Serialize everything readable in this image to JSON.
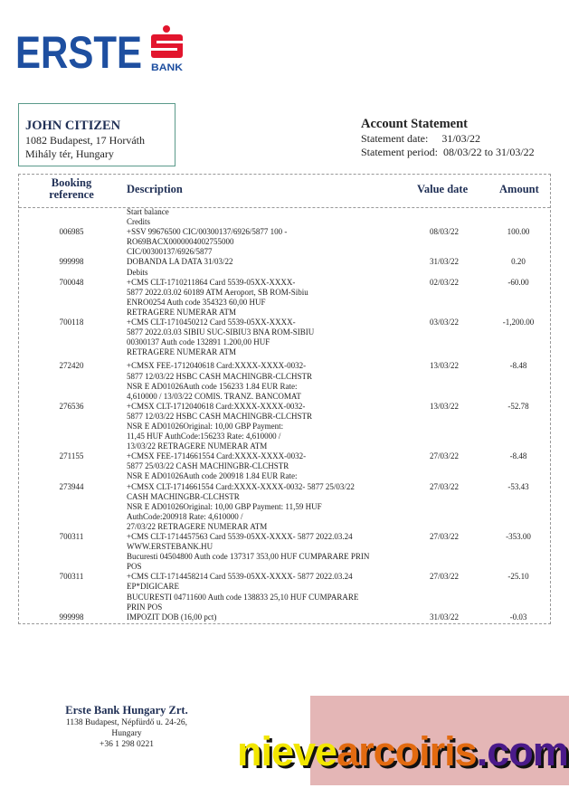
{
  "logo": {
    "word": "ERSTE",
    "sub": "BANK",
    "brand_blue": "#1e4fa0",
    "brand_red": "#e2152d"
  },
  "customer": {
    "name": "JOHN CITIZEN",
    "address_lines": [
      "1082 Budapest, 17 Horváth",
      "Mihály tér, Hungary"
    ]
  },
  "statement": {
    "title": "Account Statement",
    "date_label": "Statement date:",
    "date_value": "31/03/22",
    "period_label": "Statement period:",
    "period_value": "08/03/22 to 31/03/22"
  },
  "table": {
    "headers": {
      "ref_line1": "Booking",
      "ref_line2": "reference",
      "description": "Description",
      "value_date": "Value date",
      "amount": "Amount"
    },
    "lines": [
      {
        "desc": "Start balance"
      },
      {
        "desc": "Credits"
      },
      {
        "ref": "006985",
        "desc": "+SSV 99676500 CIC/00300137/6926/5877 100 -",
        "date": "08/03/22",
        "amount": "100.00"
      },
      {
        "desc": "RO69BACX0000004002755000"
      },
      {
        "desc": "CIC/00300137/6926/5877"
      },
      {
        "ref": "999998",
        "desc": "DOBANDA LA DATA 31/03/22",
        "date": "31/03/22",
        "amount": "0.20"
      },
      {
        "desc": "Debits"
      },
      {
        "ref": "700048",
        "desc": "+CMS CLT-1710211864 Card 5539-05XX-XXXX-",
        "date": "02/03/22",
        "amount": "-60.00"
      },
      {
        "desc": "5877 2022.03.02 60189 ATM Aeroport, SB ROM-Sibiu"
      },
      {
        "desc": "ENRO0254   Auth code 354323           60,00 HUF"
      },
      {
        "desc": "RETRAGERE NUMERAR ATM"
      },
      {
        "ref": "700118",
        "desc": "+CMS CLT-1710450212 Card 5539-05XX-XXXX-",
        "date": "03/03/22",
        "amount": "-1,200.00"
      },
      {
        "desc": "5877 2022.03.03 SIBIU SUC-SIBIU3 BNA ROM-SIBIU"
      },
      {
        "desc": "00300137              Auth code 132891   1.200,00 HUF"
      },
      {
        "desc": "RETRAGERE NUMERAR ATM"
      },
      {
        "gap": true,
        "ref": "272420",
        "desc": "+CMSX FEE-1712040618 Card:XXXX-XXXX-0032-",
        "date": "13/03/22",
        "amount": "-8.48"
      },
      {
        "desc": "5877 12/03/22 HSBC CASH MACHINGBR-CLCHSTR"
      },
      {
        "desc": "NSR E AD01026Auth code 156233 1.84 EUR Rate:"
      },
      {
        "desc": "4,610000 / 13/03/22 COMIS. TRANZ. BANCOMAT"
      },
      {
        "ref": "276536",
        "desc": "+CMSX CLT-1712040618 Card:XXXX-XXXX-0032-",
        "date": "13/03/22",
        "amount": "-52.78"
      },
      {
        "desc": "5877 12/03/22 HSBC CASH MACHINGBR-CLCHSTR"
      },
      {
        "desc": "NSR E AD01026Original: 10,00 GBP   Payment:"
      },
      {
        "desc": "11,45 HUF AuthCode:156233 Rate: 4,610000 /"
      },
      {
        "desc": "13/03/22 RETRAGERE NUMERAR ATM"
      },
      {
        "ref": "271155",
        "desc": "+CMSX FEE-1714661554 Card:XXXX-XXXX-0032-",
        "date": "27/03/22",
        "amount": "-8.48"
      },
      {
        "desc": "5877 25/03/22 CASH MACHINGBR-CLCHSTR"
      },
      {
        "desc": "NSR E AD01026Auth code 200918 1.84 EUR Rate:"
      },
      {
        "ref": "273944",
        "desc": "+CMSX CLT-1714661554 Card:XXXX-XXXX-0032- 5877 25/03/22",
        "date": "27/03/22",
        "amount": "-53.43"
      },
      {
        "desc": "CASH MACHINGBR-CLCHSTR"
      },
      {
        "desc": "NSR E AD01026Original: 10,00 GBP   Payment: 11,59 HUF"
      },
      {
        "desc": "AuthCode:200918 Rate: 4,610000 /"
      },
      {
        "desc": "27/03/22 RETRAGERE NUMERAR ATM"
      },
      {
        "ref": "700311",
        "desc": "+CMS CLT-1714457563 Card 5539-05XX-XXXX- 5877 2022.03.24",
        "date": "27/03/22",
        "amount": "-353.00"
      },
      {
        "desc": "WWW.ERSTEBANK.HU"
      },
      {
        "desc": "Bucuresti 04504800 Auth code 137317 353,00 HUF CUMPARARE PRIN"
      },
      {
        "desc": "POS"
      },
      {
        "ref": "700311",
        "desc": "+CMS CLT-1714458214 Card 5539-05XX-XXXX- 5877 2022.03.24",
        "date": "27/03/22",
        "amount": "-25.10"
      },
      {
        "desc": "EP*DIGICARE"
      },
      {
        "desc": "BUCURESTI 04711600 Auth code 138833 25,10 HUF CUMPARARE"
      },
      {
        "desc": "PRIN POS"
      },
      {
        "ref": "999998",
        "desc": "IMPOZIT DOB (16,00 pct)",
        "date": "31/03/22",
        "amount": "-0.03"
      }
    ]
  },
  "footer": {
    "name": "Erste Bank Hungary Zrt.",
    "lines": [
      "1138 Budapest, Népfürdő u. 24-26,",
      "Hungary",
      "+36 1 298 0221"
    ]
  },
  "watermark": {
    "part1": "nieve",
    "part2": "arcoiris",
    "part3": ".com"
  }
}
